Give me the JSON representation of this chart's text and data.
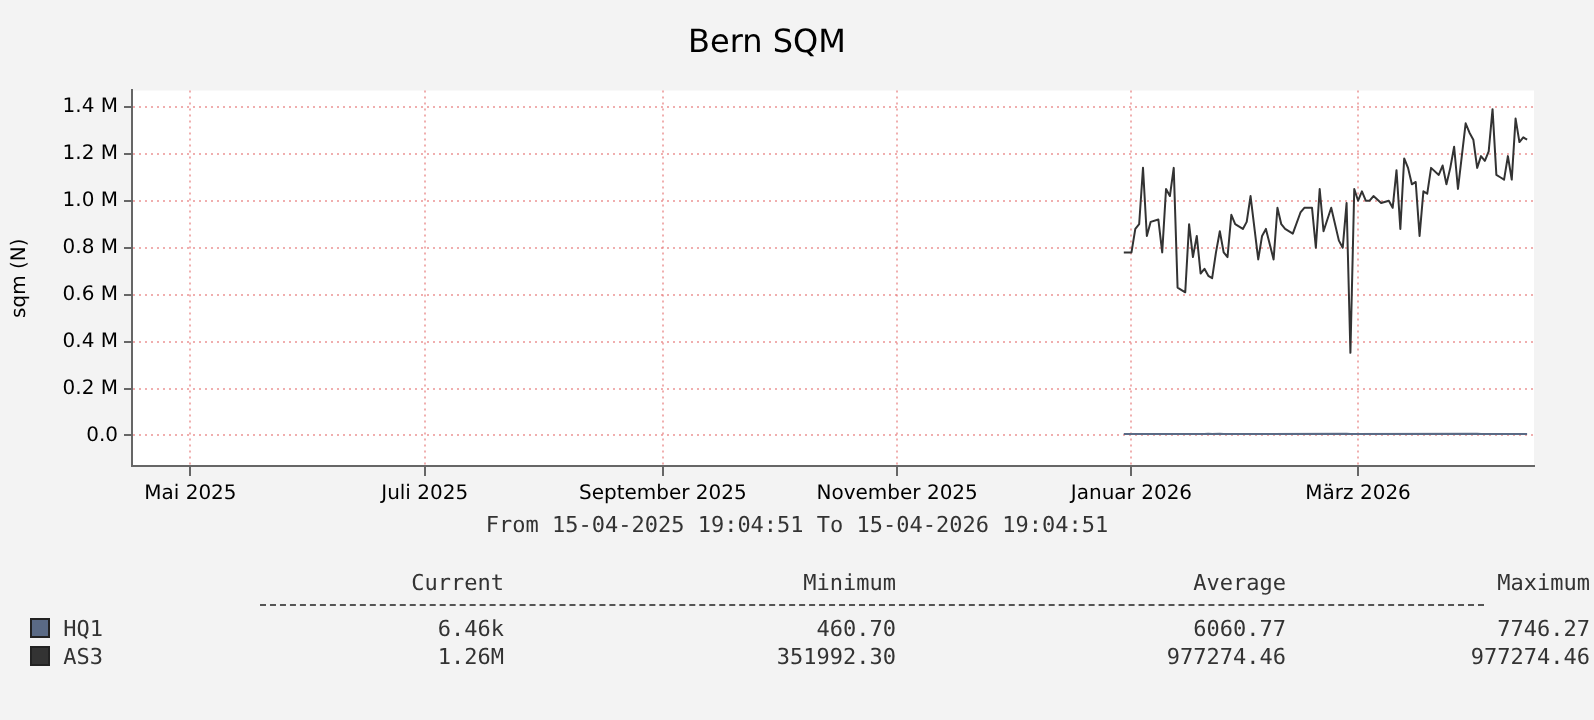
{
  "chart_data": {
    "type": "line",
    "title": "Bern SQM",
    "subtitle": "From 15-04-2025 19:04:51 To 15-04-2026 19:04:51",
    "ylabel": "sqm (N)",
    "xlim": [
      "2025-04-15T19:04",
      "2026-04-15T19:04"
    ],
    "xticks": [
      {
        "value": "2025-05-01",
        "label": "Mai 2025"
      },
      {
        "value": "2025-07-01",
        "label": "Juli 2025"
      },
      {
        "value": "2025-09-01",
        "label": "September 2025"
      },
      {
        "value": "2025-11-01",
        "label": "November 2025"
      },
      {
        "value": "2026-01-01",
        "label": "Januar 2026"
      },
      {
        "value": "2026-03-01",
        "label": "März 2026"
      }
    ],
    "ylim": [
      -130000,
      1470000
    ],
    "yticks": [
      {
        "value": 0,
        "label": "0.0"
      },
      {
        "value": 200000,
        "label": "0.2 M"
      },
      {
        "value": 400000,
        "label": "0.4 M"
      },
      {
        "value": 600000,
        "label": "0.6 M"
      },
      {
        "value": 800000,
        "label": "0.8 M"
      },
      {
        "value": 1000000,
        "label": "1.0 M"
      },
      {
        "value": 1200000,
        "label": "1.2 M"
      },
      {
        "value": 1400000,
        "label": "1.4 M"
      }
    ],
    "grid": true,
    "legend": "bottom",
    "marker": "none",
    "line_style": "solid",
    "series": [
      {
        "name": "HQ1",
        "color": "#5a6a85",
        "x": [
          "2025-12-30",
          "2026-01-20",
          "2026-01-21",
          "2026-01-22",
          "2026-01-24",
          "2026-01-25",
          "2026-02-26",
          "2026-02-27",
          "2026-04-01",
          "2026-04-02",
          "2026-04-14"
        ],
        "values": [
          6000,
          6000,
          7700,
          6000,
          7700,
          6000,
          7700,
          6000,
          7700,
          6000,
          6460
        ]
      },
      {
        "name": "AS3",
        "color": "#333333",
        "x": [
          "2025-12-30",
          "2026-01-01",
          "2026-01-02",
          "2026-01-03",
          "2026-01-04",
          "2026-01-05",
          "2026-01-06",
          "2026-01-08",
          "2026-01-09",
          "2026-01-10",
          "2026-01-11",
          "2026-01-12",
          "2026-01-13",
          "2026-01-15",
          "2026-01-16",
          "2026-01-17",
          "2026-01-18",
          "2026-01-19",
          "2026-01-20",
          "2026-01-21",
          "2026-01-22",
          "2026-01-23",
          "2026-01-24",
          "2026-01-25",
          "2026-01-26",
          "2026-01-27",
          "2026-01-28",
          "2026-01-30",
          "2026-01-31",
          "2026-02-01",
          "2026-02-03",
          "2026-02-04",
          "2026-02-05",
          "2026-02-07",
          "2026-02-08",
          "2026-02-09",
          "2026-02-10",
          "2026-02-12",
          "2026-02-14",
          "2026-02-15",
          "2026-02-17",
          "2026-02-18",
          "2026-02-19",
          "2026-02-20",
          "2026-02-22",
          "2026-02-24",
          "2026-02-25",
          "2026-02-26",
          "2026-02-27",
          "2026-02-28",
          "2026-03-01",
          "2026-03-02",
          "2026-03-03",
          "2026-03-04",
          "2026-03-05",
          "2026-03-07",
          "2026-03-09",
          "2026-03-10",
          "2026-03-11",
          "2026-03-12",
          "2026-03-13",
          "2026-03-14",
          "2026-03-15",
          "2026-03-16",
          "2026-03-17",
          "2026-03-18",
          "2026-03-19",
          "2026-03-20",
          "2026-03-22",
          "2026-03-23",
          "2026-03-24",
          "2026-03-25",
          "2026-03-26",
          "2026-03-27",
          "2026-03-28",
          "2026-03-29",
          "2026-03-30",
          "2026-03-31",
          "2026-04-01",
          "2026-04-02",
          "2026-04-03",
          "2026-04-04",
          "2026-04-05",
          "2026-04-06",
          "2026-04-07",
          "2026-04-08",
          "2026-04-09",
          "2026-04-10",
          "2026-04-11",
          "2026-04-12",
          "2026-04-13",
          "2026-04-14"
        ],
        "values": [
          780000,
          780000,
          880000,
          900000,
          1140000,
          850000,
          910000,
          920000,
          780000,
          1050000,
          1020000,
          1140000,
          630000,
          610000,
          900000,
          760000,
          850000,
          690000,
          710000,
          680000,
          670000,
          780000,
          870000,
          780000,
          760000,
          940000,
          900000,
          880000,
          910000,
          1020000,
          750000,
          850000,
          880000,
          750000,
          970000,
          900000,
          880000,
          860000,
          950000,
          970000,
          970000,
          800000,
          1050000,
          870000,
          970000,
          830000,
          800000,
          990000,
          352000,
          1050000,
          1000000,
          1040000,
          1000000,
          1000000,
          1020000,
          990000,
          1000000,
          970000,
          1130000,
          880000,
          1180000,
          1140000,
          1070000,
          1080000,
          850000,
          1040000,
          1030000,
          1140000,
          1110000,
          1150000,
          1070000,
          1140000,
          1230000,
          1050000,
          1190000,
          1330000,
          1290000,
          1260000,
          1140000,
          1190000,
          1170000,
          1210000,
          1390000,
          1110000,
          1100000,
          1090000,
          1190000,
          1090000,
          1350000,
          1250000,
          1270000,
          1260000
        ]
      }
    ],
    "annotations": [
      "Current",
      "Minimum",
      "Average",
      "Maximum",
      "6.46k",
      "460.70",
      "6060.77",
      "7746.27",
      "1.26M",
      "351992.30",
      "977274.46",
      "977274.46"
    ]
  }
}
